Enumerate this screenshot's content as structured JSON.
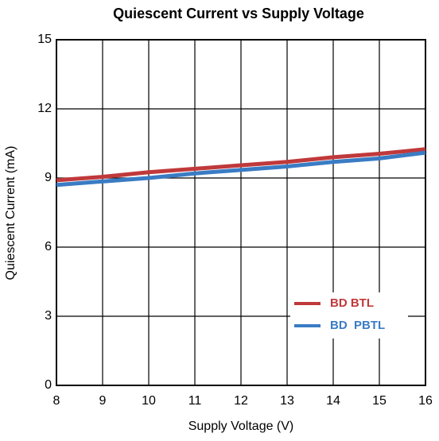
{
  "chart_data": {
    "type": "line",
    "title": "Quiescent Current vs Supply Voltage",
    "x_label": "Supply Voltage (V)",
    "y_label": "Quiescent Current (mA)",
    "x": [
      8,
      9,
      10,
      11,
      12,
      13,
      14,
      15,
      16
    ],
    "series": [
      {
        "name": "BD BTL",
        "color": "#c0393b",
        "values": [
          8.9,
          9.05,
          9.25,
          9.4,
          9.55,
          9.7,
          9.9,
          10.05,
          10.25
        ]
      },
      {
        "name": "BD  PBTL",
        "color": "#3a7cc4",
        "values": [
          8.7,
          8.85,
          9.0,
          9.2,
          9.35,
          9.5,
          9.7,
          9.85,
          10.1
        ]
      }
    ],
    "xlim": [
      8,
      16
    ],
    "xticks": [
      8,
      9,
      10,
      11,
      12,
      13,
      14,
      15,
      16
    ],
    "ylim": [
      0,
      15
    ],
    "yticks": [
      0,
      3,
      6,
      9,
      12,
      15
    ],
    "grid": true,
    "legend": "lower right"
  }
}
